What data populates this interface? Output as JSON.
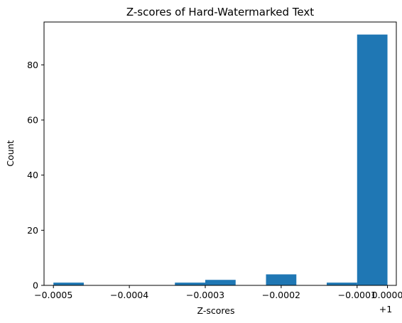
{
  "chart_data": {
    "type": "bar",
    "title": "Z-scores of Hard-Watermarked Text",
    "xlabel": "Z-scores",
    "ylabel": "Count",
    "x_offset_label": "+1",
    "x_offset": 1,
    "bins": [
      {
        "x0": 0.99946744,
        "x1": 0.99955623,
        "count": 1
      },
      {
        "x0": 0.99955623,
        "x1": 0.99964502,
        "count": 0
      },
      {
        "x0": 0.99964502,
        "x1": 0.99973381,
        "count": 0
      },
      {
        "x0": 0.99973381,
        "x1": 0.9998226,
        "count": 0
      },
      {
        "x0": 0.9998226,
        "x1": 0.99991139,
        "count": 1
      },
      {
        "x0": 0.99991139,
        "x1": 1.00000018,
        "count": 2
      },
      {
        "x0": 1.00000018,
        "x1": 1.00008897,
        "count": 0
      },
      {
        "x0": 1.00008897,
        "x1": 1.00017776,
        "count": 4
      },
      {
        "x0": 1.00017776,
        "x1": 1.00026655,
        "count": 0
      },
      {
        "x0": 1.00026655,
        "x1": 1.00035534,
        "count": 1
      },
      {
        "x0": 1.00035534,
        "x1": 1.00044413,
        "count": 91
      }
    ],
    "xlim": [
      0.99944,
      1.00047
    ],
    "ylim": [
      0,
      95.55
    ],
    "x_ticks": [
      {
        "value": 0.99946744,
        "label": "−0.0005"
      },
      {
        "value": 0.99968944,
        "label": "−0.0004"
      },
      {
        "value": 0.99991139,
        "label": "−0.0003"
      },
      {
        "value": 1.00013336,
        "label": "−0.0002"
      },
      {
        "value": 1.00035534,
        "label": "−0.0001"
      },
      {
        "value": 1.00044413,
        "label": "0.0000"
      }
    ],
    "y_ticks": [
      0,
      20,
      40,
      60,
      80
    ],
    "bar_color": "#1f77b4",
    "grid": false
  }
}
